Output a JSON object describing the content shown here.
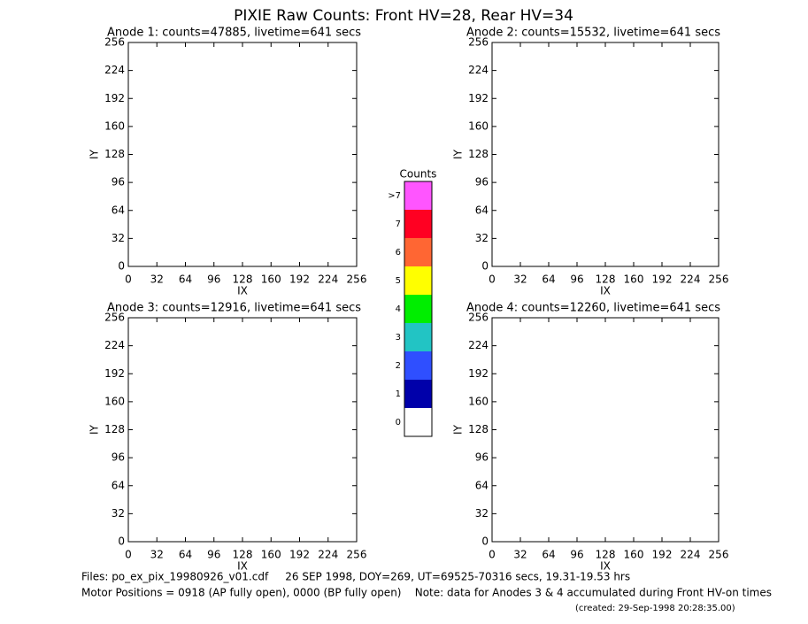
{
  "title": "PIXIE Raw Counts:  Front HV=28, Rear HV=34",
  "chart_data": [
    {
      "type": "heatmap",
      "title": "Anode 1: counts=47885, livetime=641 secs",
      "xlabel": "IX",
      "ylabel": "IY",
      "xlim": [
        0,
        256
      ],
      "ylim": [
        0,
        256
      ],
      "xticks": [
        0,
        32,
        64,
        96,
        128,
        160,
        192,
        224,
        256
      ],
      "yticks": [
        0,
        32,
        64,
        96,
        128,
        160,
        192,
        224,
        256
      ]
    },
    {
      "type": "heatmap",
      "title": "Anode 2: counts=15532, livetime=641 secs",
      "xlabel": "IX",
      "ylabel": "IY",
      "xlim": [
        0,
        256
      ],
      "ylim": [
        0,
        256
      ],
      "xticks": [
        0,
        32,
        64,
        96,
        128,
        160,
        192,
        224,
        256
      ],
      "yticks": [
        0,
        32,
        64,
        96,
        128,
        160,
        192,
        224,
        256
      ]
    },
    {
      "type": "heatmap",
      "title": "Anode 3: counts=12916, livetime=641 secs",
      "xlabel": "IX",
      "ylabel": "IY",
      "xlim": [
        0,
        256
      ],
      "ylim": [
        0,
        256
      ],
      "xticks": [
        0,
        32,
        64,
        96,
        128,
        160,
        192,
        224,
        256
      ],
      "yticks": [
        0,
        32,
        64,
        96,
        128,
        160,
        192,
        224,
        256
      ]
    },
    {
      "type": "heatmap",
      "title": "Anode 4: counts=12260, livetime=641 secs",
      "xlabel": "IX",
      "ylabel": "IY",
      "xlim": [
        0,
        256
      ],
      "ylim": [
        0,
        256
      ],
      "xticks": [
        0,
        32,
        64,
        96,
        128,
        160,
        192,
        224,
        256
      ],
      "yticks": [
        0,
        32,
        64,
        96,
        128,
        160,
        192,
        224,
        256
      ]
    }
  ],
  "colorbar": {
    "title": "Counts",
    "ticks": [
      0,
      1,
      2,
      3,
      4,
      5,
      6,
      7,
      {
        "value": 8,
        "label": ">7"
      }
    ],
    "colors": [
      "#ffffff",
      "#0000aa",
      "#2f4fff",
      "#22c4c4",
      "#00ee00",
      "#ffff00",
      "#ff6633",
      "#ff0022",
      "#ff55ff"
    ]
  },
  "footer": [
    "Files: po_ex_pix_19980926_v01.cdf     26 SEP 1998, DOY=269, UT=69525-70316 secs, 19.31-19.53 hrs",
    "Motor Positions = 0918 (AP fully open), 0000 (BP fully open)    Note: data for Anodes 3 & 4 accumulated during Front HV-on times",
    "(created: 29-Sep-1998 20:28:35.00)"
  ]
}
